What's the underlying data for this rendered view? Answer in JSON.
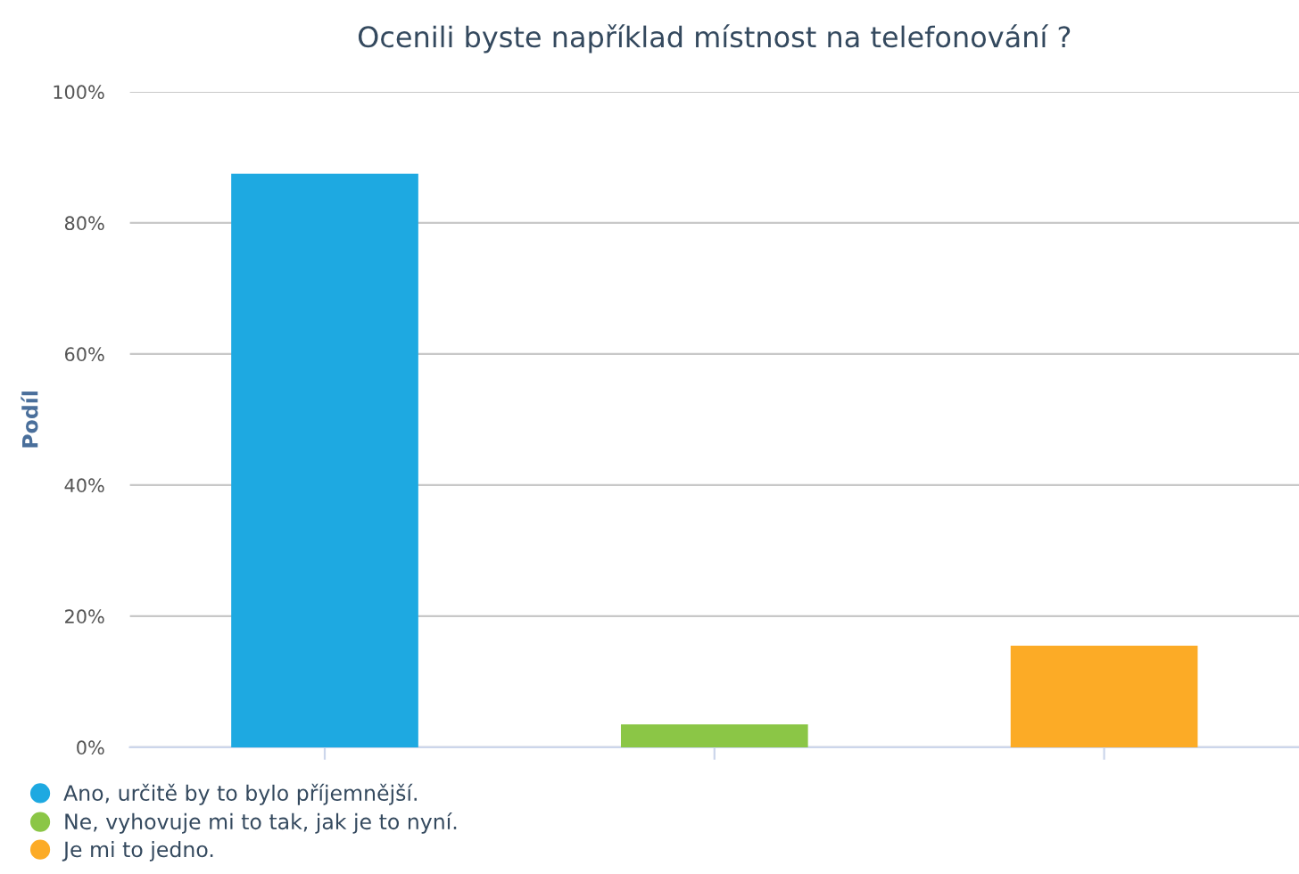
{
  "chart_data": {
    "type": "bar",
    "title": "Ocenili byste například místnost na telefonování ?",
    "ylabel": "Podíl",
    "categories": [
      null,
      null,
      null
    ],
    "series": [
      {
        "name": "Ano, určitě by to bylo příjemnější.",
        "color": "#1ea9e1",
        "values": [
          87.5,
          null,
          null
        ]
      },
      {
        "name": "Ne, vyhovuje mi to tak, jak je to nyní.",
        "color": "#8bc646",
        "values": [
          null,
          3.5,
          null
        ]
      },
      {
        "name": "Je mi to jedno.",
        "color": "#fcab26",
        "values": [
          null,
          null,
          15.5
        ]
      }
    ],
    "ylim": [
      0,
      100
    ],
    "yticks": [
      {
        "value": 0,
        "label": "0%"
      },
      {
        "value": 20,
        "label": "20%"
      },
      {
        "value": 40,
        "label": "40%"
      },
      {
        "value": 60,
        "label": "60%"
      },
      {
        "value": 80,
        "label": "80%"
      },
      {
        "value": 100,
        "label": "100%"
      }
    ],
    "grid": "y",
    "legend": "bottom left"
  }
}
